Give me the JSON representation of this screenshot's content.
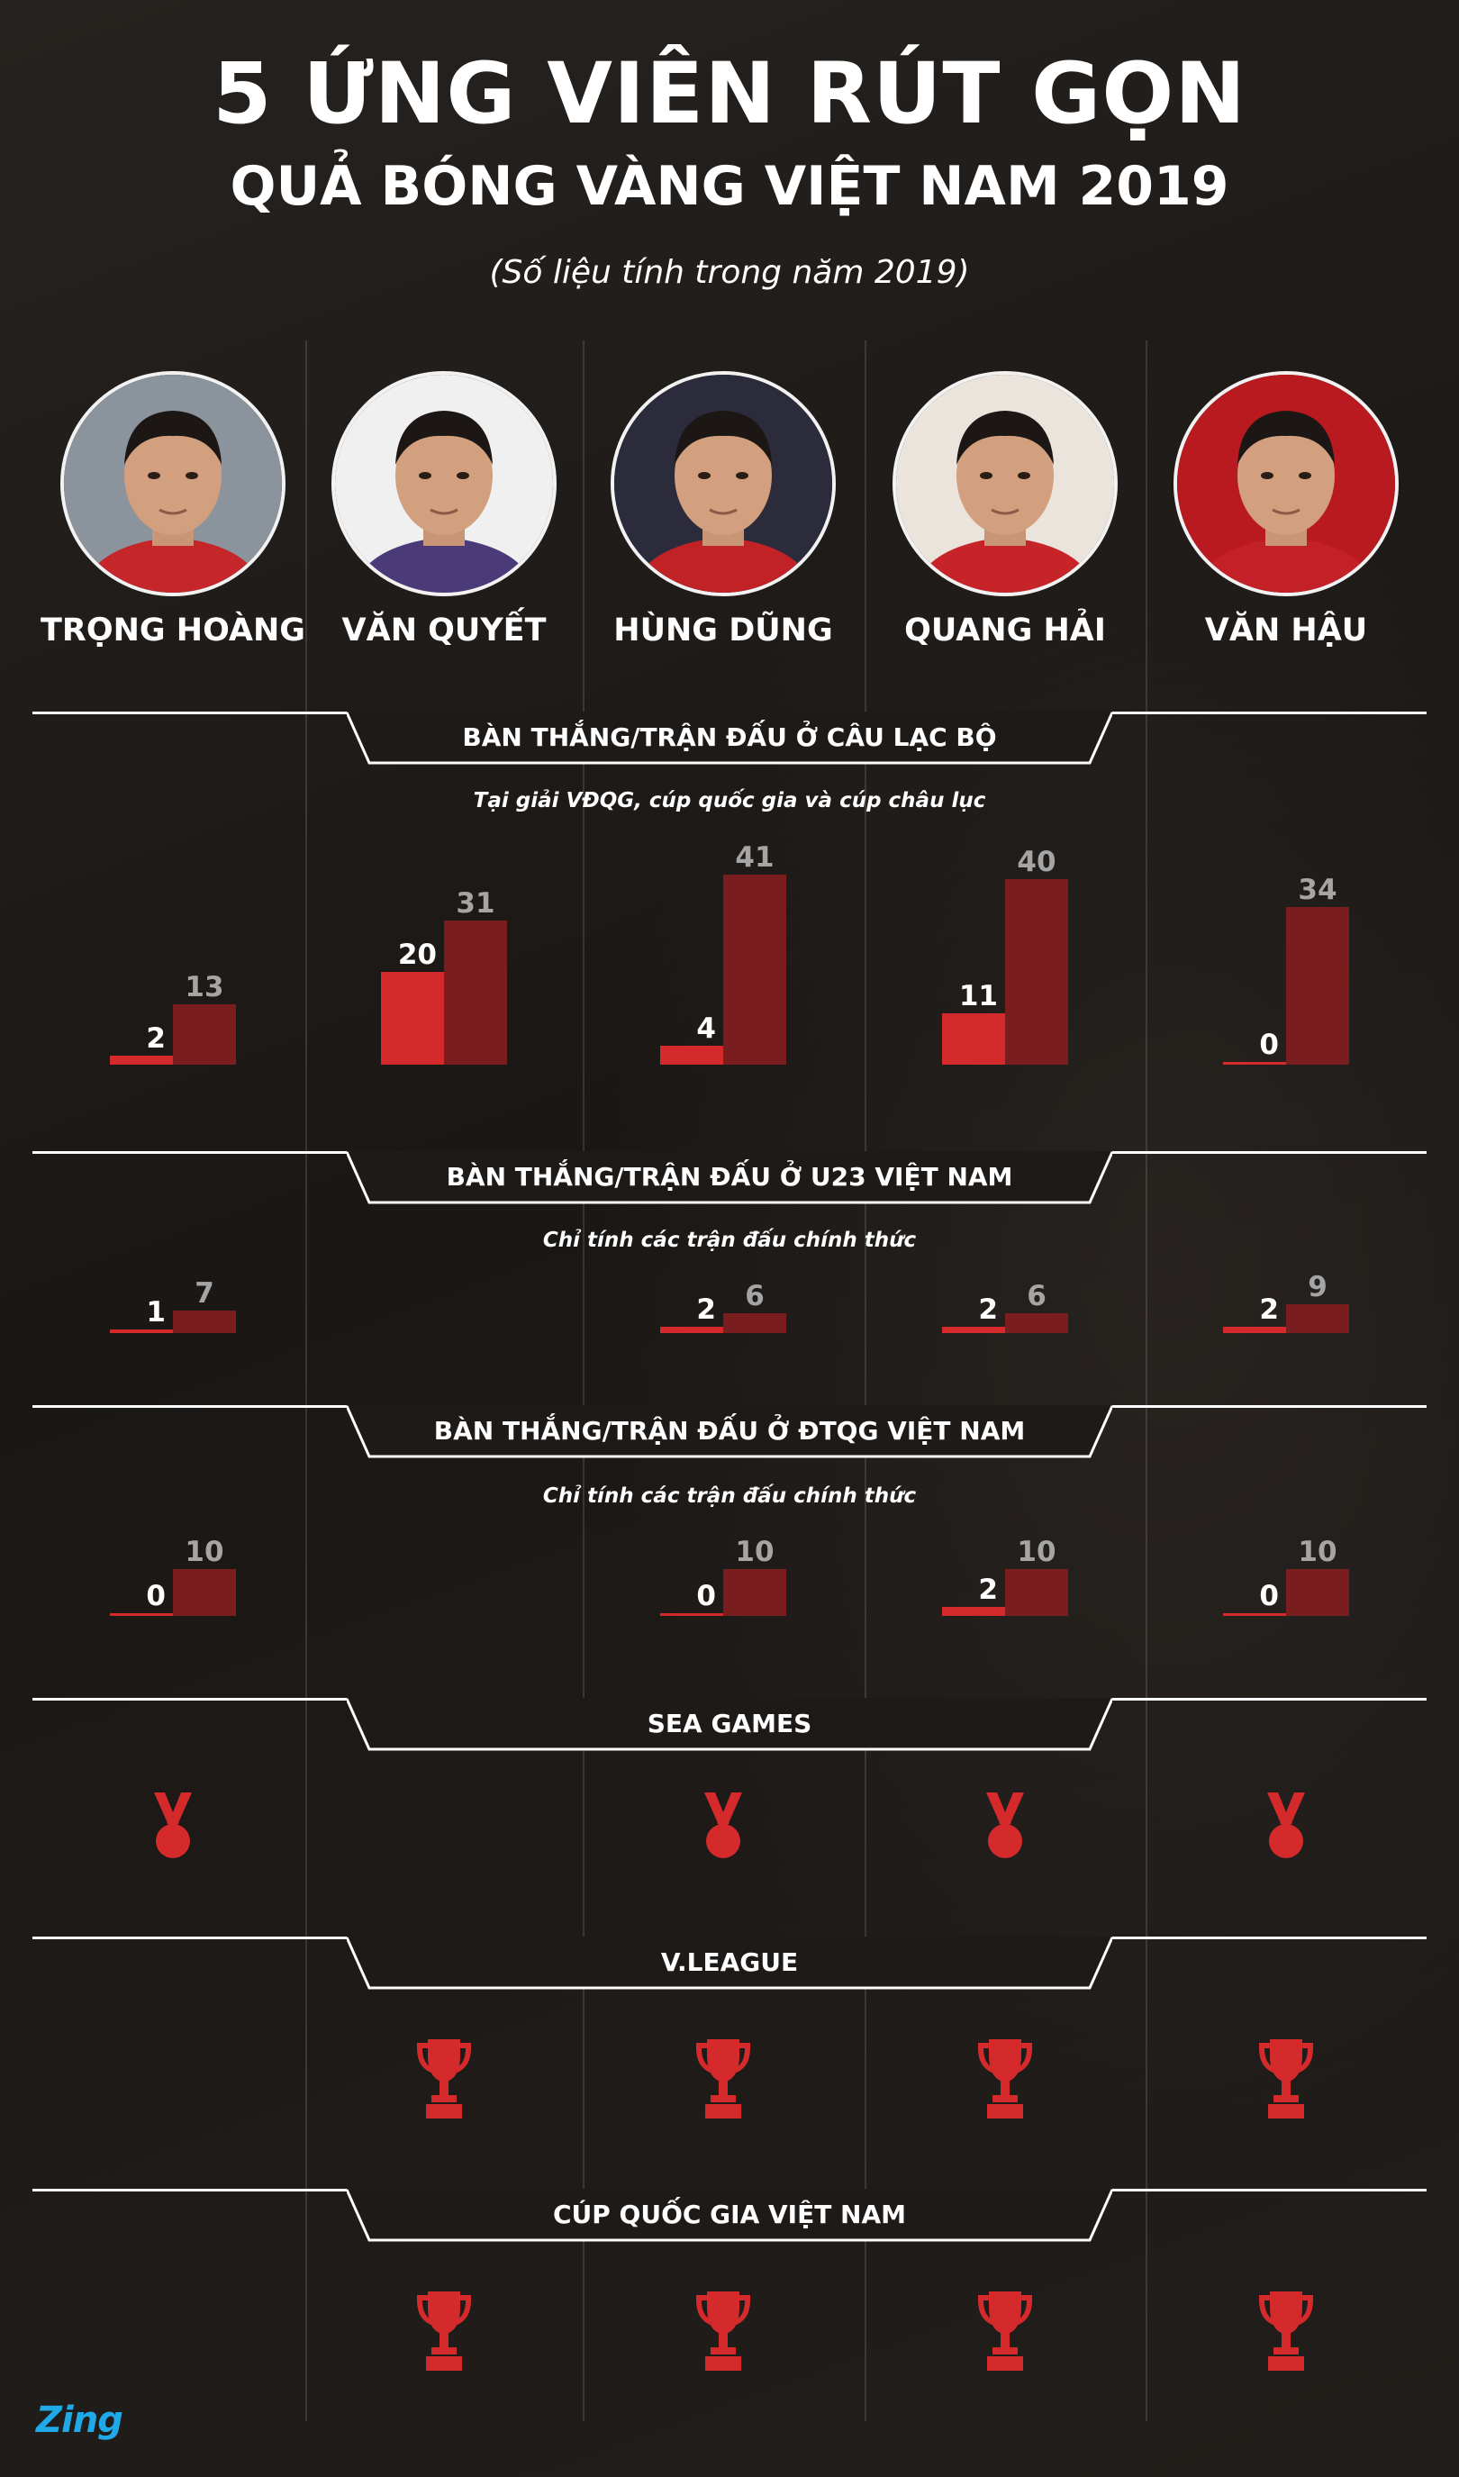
{
  "title": "5 ỨNG VIÊN RÚT GỌN",
  "subtitle_main": "QUẢ BÓNG VÀNG VIỆT NAM 2019",
  "note": "(Số liệu tính trong năm 2019)",
  "players": [
    {
      "name": "TRỌNG HOÀNG",
      "jersey_color": "#c4262a",
      "bg_color": "#8b949c"
    },
    {
      "name": "VĂN QUYẾT",
      "jersey_color": "#4b3a78",
      "bg_color": "#f0f0f0"
    },
    {
      "name": "HÙNG DŨNG",
      "jersey_color": "#c02226",
      "bg_color": "#2b2b3b"
    },
    {
      "name": "QUANG HẢI",
      "jersey_color": "#c62428",
      "bg_color": "#eae4dc"
    },
    {
      "name": "VĂN HẬU",
      "jersey_color": "#c42027",
      "bg_color": "#b81a20"
    }
  ],
  "colors": {
    "goals": "#d42a2b",
    "matches": "#7a1d1e",
    "award": "#d42a2b",
    "line": "#ffffff"
  },
  "chart_data": [
    {
      "type": "bar",
      "title": "BÀN THẮNG/TRẬN ĐẤU Ở CÂU LẠC BỘ",
      "note": "Tại giải VĐQG, cúp quốc gia và cúp châu lục",
      "categories": [
        "TRỌNG HOÀNG",
        "VĂN QUYẾT",
        "HÙNG DŨNG",
        "QUANG HẢI",
        "VĂN HẬU"
      ],
      "series": [
        {
          "values": [
            2,
            20,
            4,
            11,
            0
          ]
        },
        {
          "values": [
            13,
            31,
            41,
            40,
            34
          ]
        }
      ]
    },
    {
      "type": "bar",
      "title": "BÀN THẮNG/TRẬN ĐẤU Ở U23 VIỆT NAM",
      "note": "Chỉ tính các trận đấu chính thức",
      "categories": [
        "TRỌNG HOÀNG",
        "VĂN QUYẾT",
        "HÙNG DŨNG",
        "QUANG HẢI",
        "VĂN HẬU"
      ],
      "series": [
        {
          "values": [
            1,
            null,
            2,
            2,
            2
          ]
        },
        {
          "values": [
            7,
            null,
            6,
            6,
            9
          ]
        }
      ]
    },
    {
      "type": "bar",
      "title": "BÀN THẮNG/TRẬN ĐẤU Ở ĐTQG VIỆT NAM",
      "note": "Chỉ tính các trận đấu chính thức",
      "categories": [
        "TRỌNG HOÀNG",
        "VĂN QUYẾT",
        "HÙNG DŨNG",
        "QUANG HẢI",
        "VĂN HẬU"
      ],
      "series": [
        {
          "values": [
            0,
            null,
            0,
            2,
            0
          ]
        },
        {
          "values": [
            10,
            null,
            10,
            10,
            10
          ]
        }
      ]
    }
  ],
  "awards": [
    {
      "title": "SEA GAMES",
      "icon": "medal-icon",
      "has": [
        true,
        false,
        true,
        true,
        true
      ]
    },
    {
      "title": "V.LEAGUE",
      "icon": "trophy-icon",
      "has": [
        false,
        true,
        true,
        true,
        true
      ]
    },
    {
      "title": "CÚP QUỐC GIA VIỆT NAM",
      "icon": "trophy-icon",
      "has": [
        false,
        true,
        true,
        true,
        true
      ]
    }
  ],
  "logo": "Zing"
}
